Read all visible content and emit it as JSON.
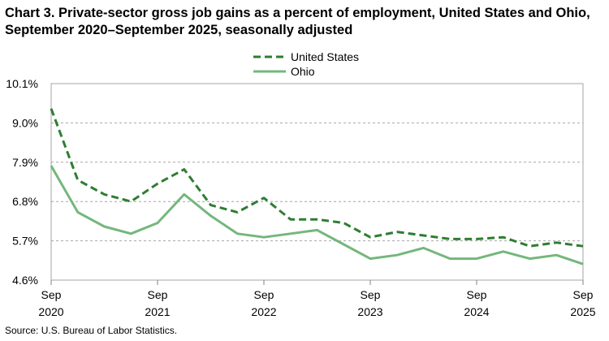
{
  "chart_data": {
    "type": "line",
    "title": "Chart 3. Private-sector gross job gains as a percent of employment, United States and Ohio, September 2020–September 2025, seasonally adjusted",
    "xlabel": "",
    "ylabel": "",
    "source": "Source: U.S. Bureau of Labor Statistics.",
    "x": [
      "Sep 2020",
      "Dec 2020",
      "Mar 2021",
      "Jun 2021",
      "Sep 2021",
      "Dec 2021",
      "Mar 2022",
      "Jun 2022",
      "Sep 2022",
      "Dec 2022",
      "Mar 2023",
      "Jun 2023",
      "Sep 2023",
      "Dec 2023",
      "Mar 2024",
      "Jun 2024",
      "Sep 2024",
      "Dec 2024",
      "Mar 2025",
      "Jun 2025",
      "Sep 2025"
    ],
    "x_tick_labels": [
      {
        "index": 0,
        "line1": "Sep",
        "line2": "2020"
      },
      {
        "index": 4,
        "line1": "Sep",
        "line2": "2021"
      },
      {
        "index": 8,
        "line1": "Sep",
        "line2": "2022"
      },
      {
        "index": 12,
        "line1": "Sep",
        "line2": "2023"
      },
      {
        "index": 16,
        "line1": "Sep",
        "line2": "2024"
      },
      {
        "index": 20,
        "line1": "Sep",
        "line2": "2025"
      }
    ],
    "y_ticks": [
      {
        "value": 4.6,
        "label": "4.6%"
      },
      {
        "value": 5.7,
        "label": "5.7%"
      },
      {
        "value": 6.8,
        "label": "6.8%"
      },
      {
        "value": 7.9,
        "label": "7.9%"
      },
      {
        "value": 9.0,
        "label": "9.0%"
      },
      {
        "value": 10.1,
        "label": "10.1%"
      }
    ],
    "ylim": [
      4.6,
      10.1
    ],
    "grid": "horizontal dashed",
    "legend_position": "top-center",
    "series": [
      {
        "name": "United States",
        "style": "dashed",
        "color": "#2e7d32",
        "values": [
          9.4,
          7.4,
          7.0,
          6.8,
          7.3,
          7.7,
          6.7,
          6.5,
          6.9,
          6.3,
          6.3,
          6.2,
          5.8,
          5.95,
          5.85,
          5.75,
          5.75,
          5.8,
          5.55,
          5.65,
          5.55
        ]
      },
      {
        "name": "Ohio",
        "style": "solid",
        "color": "#74b77c",
        "values": [
          7.8,
          6.5,
          6.1,
          5.9,
          6.2,
          7.0,
          6.4,
          5.9,
          5.8,
          5.9,
          6.0,
          5.6,
          5.2,
          5.3,
          5.5,
          5.2,
          5.2,
          5.4,
          5.2,
          5.3,
          5.05
        ]
      }
    ]
  }
}
